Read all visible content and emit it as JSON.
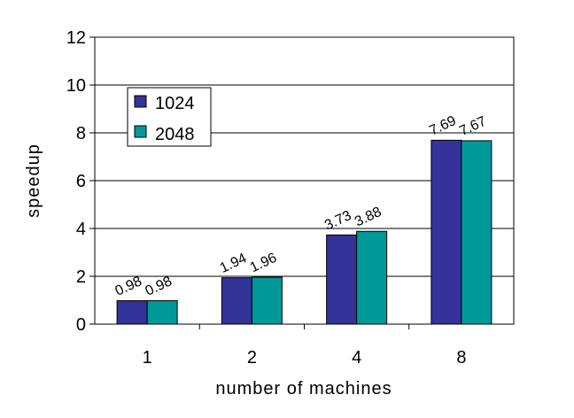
{
  "chart_data": {
    "type": "bar",
    "title": "",
    "xlabel": "number of machines",
    "ylabel": "speedup",
    "categories": [
      "1",
      "2",
      "4",
      "8"
    ],
    "series": [
      {
        "name": "1024",
        "values": [
          0.98,
          1.94,
          3.73,
          7.69
        ],
        "labels": [
          "0.98",
          "1.94",
          "3.73",
          "7.69"
        ],
        "color": "#333399"
      },
      {
        "name": "2048",
        "values": [
          0.98,
          1.96,
          3.88,
          7.67
        ],
        "labels": [
          "0.98",
          "1.96",
          "3.88",
          "7.67"
        ],
        "color": "#009999"
      }
    ],
    "ylim": [
      0,
      12
    ],
    "yticks": [
      "0",
      "2",
      "4",
      "6",
      "8",
      "10",
      "12"
    ],
    "grid": true,
    "legend": "top-left"
  }
}
